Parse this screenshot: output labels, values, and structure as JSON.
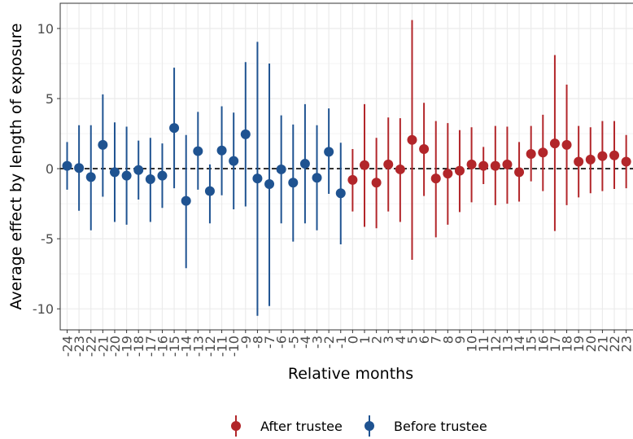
{
  "chart_data": {
    "type": "scatter",
    "subtype": "point-range (coefficient plot)",
    "xlabel": "Relative months",
    "ylabel": "Average effect by length of exposure",
    "categories": [
      "-24",
      "-23",
      "-22",
      "-21",
      "-20",
      "-19",
      "-18",
      "-17",
      "-16",
      "-15",
      "-14",
      "-13",
      "-12",
      "-11",
      "-10",
      "-9",
      "-8",
      "-7",
      "-6",
      "-5",
      "-4",
      "-3",
      "-2",
      "-1",
      "0",
      "1",
      "2",
      "3",
      "4",
      "5",
      "6",
      "7",
      "8",
      "9",
      "10",
      "11",
      "12",
      "13",
      "14",
      "15",
      "16",
      "17",
      "18",
      "19",
      "20",
      "21",
      "22",
      "23",
      "24"
    ],
    "ylim": [
      -11.5,
      11.8
    ],
    "yticks": [
      -10,
      -5,
      0,
      5,
      10
    ],
    "ytick_labels": [
      "-10",
      "-5",
      "0",
      "5",
      "10"
    ],
    "reference_line": {
      "y": 0,
      "style": "dashed",
      "color": "#000000"
    },
    "grid": true,
    "legend_position": "bottom",
    "series": [
      {
        "name": "Before trustee",
        "color": "#1f5391",
        "x": [
          "-24",
          "-23",
          "-22",
          "-21",
          "-20",
          "-19",
          "-18",
          "-17",
          "-16",
          "-15",
          "-14",
          "-13",
          "-12",
          "-11",
          "-10",
          "-9",
          "-8",
          "-7",
          "-6",
          "-5",
          "-4",
          "-3",
          "-2",
          "-1"
        ],
        "values": [
          0.2,
          0.05,
          -0.6,
          1.7,
          -0.25,
          -0.5,
          -0.1,
          -0.75,
          -0.5,
          2.9,
          -2.3,
          1.25,
          -1.6,
          1.3,
          0.55,
          2.45,
          -0.7,
          -1.1,
          -0.05,
          -1.0,
          0.35,
          -0.65,
          1.2,
          -1.75
        ],
        "lower": [
          -1.5,
          -3.0,
          -4.4,
          -2.0,
          -3.8,
          -4.0,
          -2.2,
          -3.8,
          -2.8,
          -1.4,
          -7.1,
          -1.5,
          -3.9,
          -1.9,
          -2.9,
          -2.7,
          -10.5,
          -9.8,
          -3.9,
          -5.2,
          -3.9,
          -4.4,
          -1.8,
          -5.4
        ],
        "upper": [
          1.9,
          3.1,
          3.1,
          5.3,
          3.3,
          3.0,
          2.0,
          2.2,
          1.8,
          7.2,
          2.4,
          4.05,
          0.3,
          4.45,
          4.0,
          7.6,
          9.05,
          7.5,
          3.8,
          3.15,
          4.6,
          3.1,
          4.3,
          1.85
        ]
      },
      {
        "name": "After trustee",
        "color": "#b2262a",
        "x": [
          "0",
          "1",
          "2",
          "3",
          "4",
          "5",
          "6",
          "7",
          "8",
          "9",
          "10",
          "11",
          "12",
          "13",
          "14",
          "15",
          "16",
          "17",
          "18",
          "19",
          "20",
          "21",
          "22",
          "23",
          "24"
        ],
        "values": [
          -0.8,
          0.25,
          -1.0,
          0.3,
          -0.05,
          2.05,
          1.4,
          -0.7,
          -0.35,
          -0.15,
          0.3,
          0.2,
          0.2,
          0.3,
          -0.25,
          1.05,
          1.15,
          1.8,
          1.7,
          0.5,
          0.65,
          0.9,
          0.95,
          0.5,
          0.5
        ],
        "lower": [
          -3.05,
          -4.15,
          -4.25,
          -3.05,
          -3.8,
          -6.5,
          -1.95,
          -4.9,
          -4.0,
          -3.1,
          -2.4,
          -1.1,
          -2.6,
          -2.5,
          -2.35,
          -0.9,
          -1.6,
          -4.45,
          -2.6,
          -2.05,
          -1.75,
          -1.6,
          -1.45,
          -1.4,
          -1.0
        ],
        "upper": [
          1.4,
          4.6,
          2.2,
          3.65,
          3.6,
          10.6,
          4.7,
          3.4,
          3.25,
          2.75,
          2.95,
          1.55,
          3.05,
          3.0,
          1.9,
          3.05,
          3.85,
          8.1,
          6.0,
          3.05,
          2.95,
          3.4,
          3.4,
          2.4,
          2.0
        ]
      }
    ],
    "legend": [
      {
        "label": "After trustee",
        "color": "#b2262a"
      },
      {
        "label": "Before trustee",
        "color": "#1f5391"
      }
    ]
  }
}
